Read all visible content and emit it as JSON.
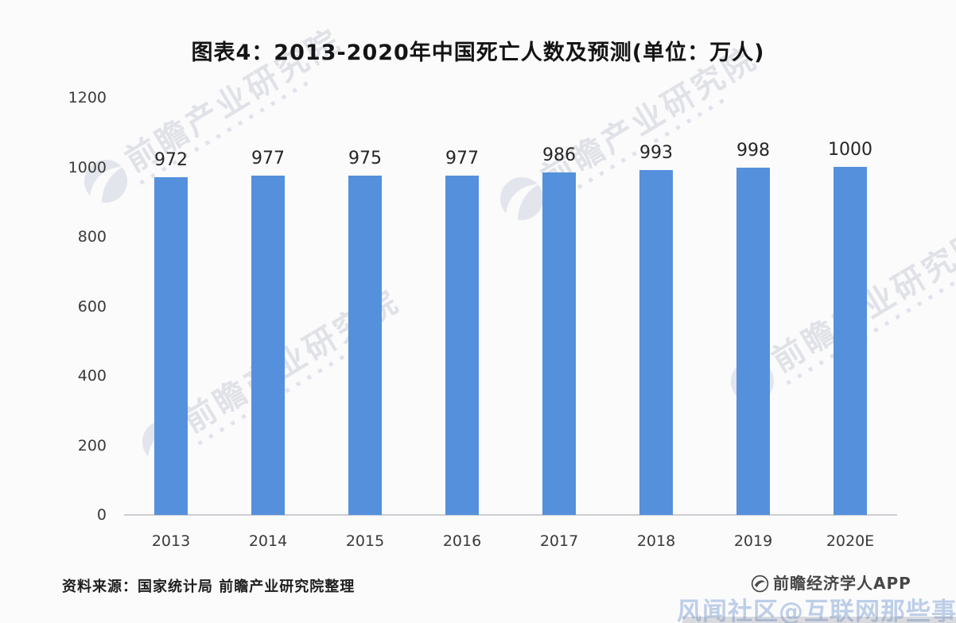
{
  "title": "图表4：2013-2020年中国死亡人数及预测(单位：万人)",
  "chart_data": {
    "type": "bar",
    "title": "图表4：2013-2020年中国死亡人数及预测(单位：万人)",
    "categories": [
      "2013",
      "2014",
      "2015",
      "2016",
      "2017",
      "2018",
      "2019",
      "2020E"
    ],
    "values": [
      972,
      977,
      975,
      977,
      986,
      993,
      998,
      1000
    ],
    "unit": "万人",
    "xlabel": "",
    "ylabel": "",
    "ylim": [
      0,
      1200
    ],
    "yticks": [
      0,
      200,
      400,
      600,
      800,
      1000,
      1200
    ],
    "bar_color": "#5590DC",
    "grid": false,
    "legend": "none",
    "value_labels_shown": true
  },
  "watermark": {
    "text": "前瞻产业研究院"
  },
  "footer": {
    "source": "资料来源：国家统计局 前瞻产业研究院整理",
    "brand": "前瞻经济学人APP"
  },
  "overlay_watermark": {
    "text": "风闻社区@互联网那些事"
  }
}
